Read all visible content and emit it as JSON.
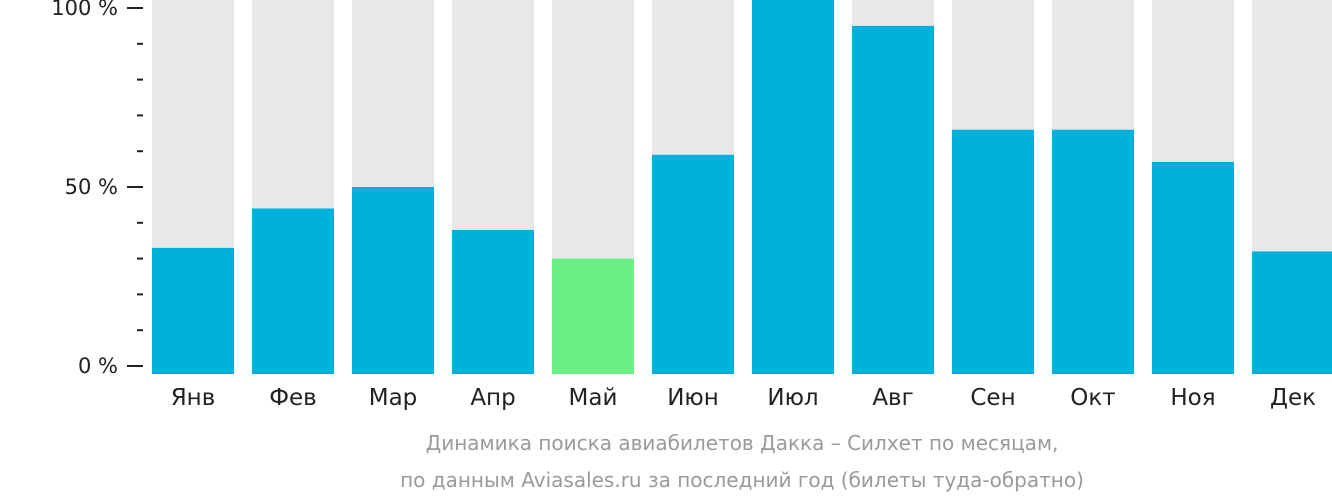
{
  "chart_data": {
    "type": "bar",
    "categories": [
      "Янв",
      "Фев",
      "Мар",
      "Апр",
      "Май",
      "Июн",
      "Июл",
      "Авг",
      "Сен",
      "Окт",
      "Ноя",
      "Дек"
    ],
    "values": [
      33,
      44,
      50,
      38,
      30,
      59,
      100,
      95,
      66,
      66,
      57,
      32
    ],
    "highlight_index": 4,
    "ylim": [
      0,
      100
    ],
    "yticks": [
      {
        "value": 100,
        "label": "100 %"
      },
      {
        "value": 50,
        "label": "50 %"
      },
      {
        "value": 0,
        "label": "0 %"
      }
    ],
    "minor_tick_step": 10,
    "colors": {
      "bar": "#02b0dc",
      "highlight": "#6cf085",
      "track": "#e8e8e8",
      "axis": "#222222"
    },
    "caption_lines": [
      "Динамика поиска авиабилетов Дакка – Силхет по месяцам,",
      "по данным Aviasales.ru за последний год (билеты туда-обратно)"
    ]
  }
}
